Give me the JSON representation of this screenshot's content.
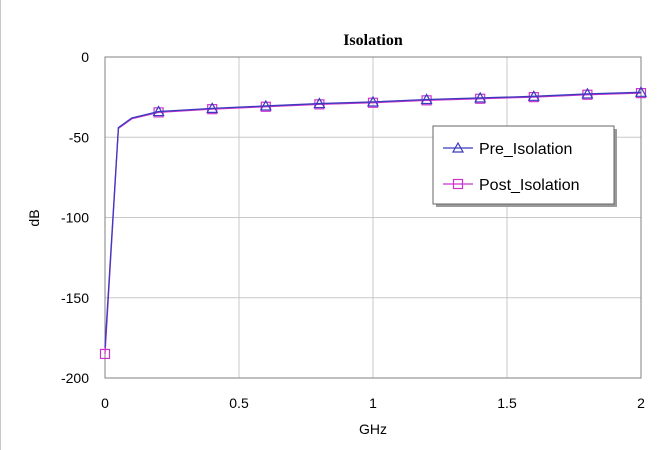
{
  "chart_data": {
    "type": "line",
    "title": "Isolation",
    "xlabel": "GHz",
    "ylabel": "dB",
    "xlim": [
      0,
      2
    ],
    "ylim": [
      -200,
      0
    ],
    "xticks": [
      0,
      0.5,
      1,
      1.5,
      2
    ],
    "xtick_labels": [
      "0",
      "0.5",
      "1",
      "1.5",
      "2"
    ],
    "yticks": [
      0,
      -50,
      -100,
      -150,
      -200
    ],
    "ytick_labels": [
      "0",
      "-50",
      "-100",
      "-150",
      "-200"
    ],
    "grid": true,
    "legend_position": "right",
    "series": [
      {
        "name": "Pre_Isolation",
        "color": "#3b3bbf",
        "marker": "triangle",
        "x": [
          0.0,
          0.05,
          0.1,
          0.2,
          0.4,
          0.6,
          0.8,
          1.0,
          1.2,
          1.4,
          1.6,
          1.8,
          2.0
        ],
        "y": [
          -181,
          -44,
          -38,
          -34,
          -32,
          -30.5,
          -29,
          -28,
          -26.5,
          -25.5,
          -24.5,
          -23,
          -22
        ],
        "marker_x": [
          0.2,
          0.4,
          0.6,
          0.8,
          1.0,
          1.2,
          1.4,
          1.6,
          1.8,
          2.0
        ]
      },
      {
        "name": "Post_Isolation",
        "color": "#cc33cc",
        "marker": "square",
        "x": [
          0.0,
          0.05,
          0.1,
          0.2,
          0.4,
          0.6,
          0.8,
          1.0,
          1.2,
          1.4,
          1.6,
          1.8,
          2.0
        ],
        "y": [
          -185,
          -44.5,
          -38.5,
          -34.5,
          -32.5,
          -31,
          -29.5,
          -28.5,
          -27,
          -26,
          -25,
          -23.5,
          -22.5
        ],
        "marker_x": [
          0.0,
          0.2,
          0.4,
          0.6,
          0.8,
          1.0,
          1.2,
          1.4,
          1.6,
          1.8,
          2.0
        ]
      }
    ]
  }
}
